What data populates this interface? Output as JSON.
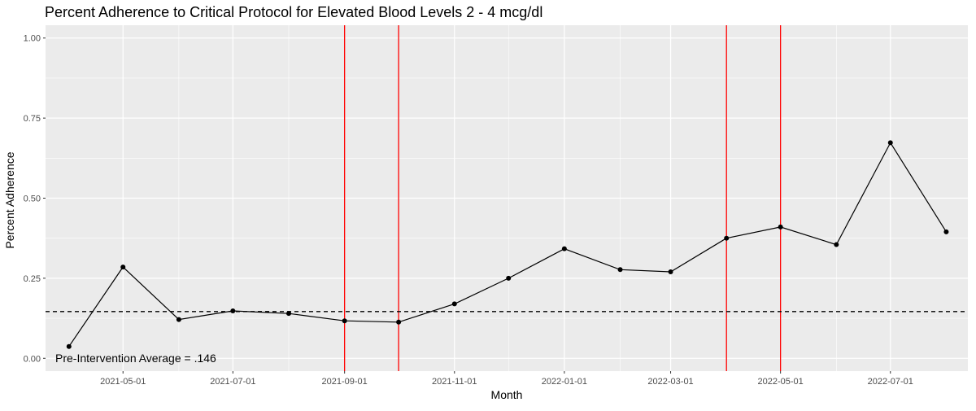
{
  "chart_data": {
    "type": "line",
    "title": "Percent Adherence to Critical Protocol for Elevated Blood Levels 2 - 4 mcg/dl",
    "xlabel": "Month",
    "ylabel": "Percent Adherence",
    "ylim": [
      -0.04,
      1.04
    ],
    "xlim": [
      "2021-03-19",
      "2022-08-13"
    ],
    "y_ticks": [
      {
        "value": 0.0,
        "label": "0.00"
      },
      {
        "value": 0.25,
        "label": "0.25"
      },
      {
        "value": 0.5,
        "label": "0.50"
      },
      {
        "value": 0.75,
        "label": "0.75"
      },
      {
        "value": 1.0,
        "label": "1.00"
      }
    ],
    "x_ticks": [
      {
        "date": "2021-05-01",
        "label": "2021-05-01"
      },
      {
        "date": "2021-07-01",
        "label": "2021-07-01"
      },
      {
        "date": "2021-09-01",
        "label": "2021-09-01"
      },
      {
        "date": "2021-11-01",
        "label": "2021-11-01"
      },
      {
        "date": "2022-01-01",
        "label": "2022-01-01"
      },
      {
        "date": "2022-03-01",
        "label": "2022-03-01"
      },
      {
        "date": "2022-05-01",
        "label": "2022-05-01"
      },
      {
        "date": "2022-07-01",
        "label": "2022-07-01"
      }
    ],
    "x_minor_ticks": [
      "2021-06-01",
      "2021-08-01",
      "2021-10-01",
      "2021-12-01",
      "2022-02-01",
      "2022-04-01",
      "2022-06-01"
    ],
    "grid": true,
    "series": [
      {
        "x": [
          "2021-04-01",
          "2021-05-01",
          "2021-06-01",
          "2021-07-01",
          "2021-08-01",
          "2021-09-01",
          "2021-10-01",
          "2021-11-01",
          "2021-12-01",
          "2022-01-01",
          "2022-02-01",
          "2022-03-01",
          "2022-04-01",
          "2022-05-01",
          "2022-06-01",
          "2022-07-01",
          "2022-08-01"
        ],
        "values": [
          0.037,
          0.285,
          0.121,
          0.148,
          0.14,
          0.117,
          0.113,
          0.17,
          0.25,
          0.342,
          0.277,
          0.27,
          0.375,
          0.41,
          0.355,
          0.673,
          0.395
        ]
      }
    ],
    "reference_line": {
      "value": 0.146,
      "style": "dashed",
      "color": "#000000"
    },
    "vertical_lines": {
      "dates": [
        "2021-09-01",
        "2021-10-01",
        "2022-04-01",
        "2022-05-01"
      ],
      "color": "#ff0000"
    },
    "annotation": "Pre-Intervention Average = .146",
    "colors": {
      "panel": "#ebebeb",
      "grid": "#ffffff",
      "line": "#000000"
    }
  }
}
